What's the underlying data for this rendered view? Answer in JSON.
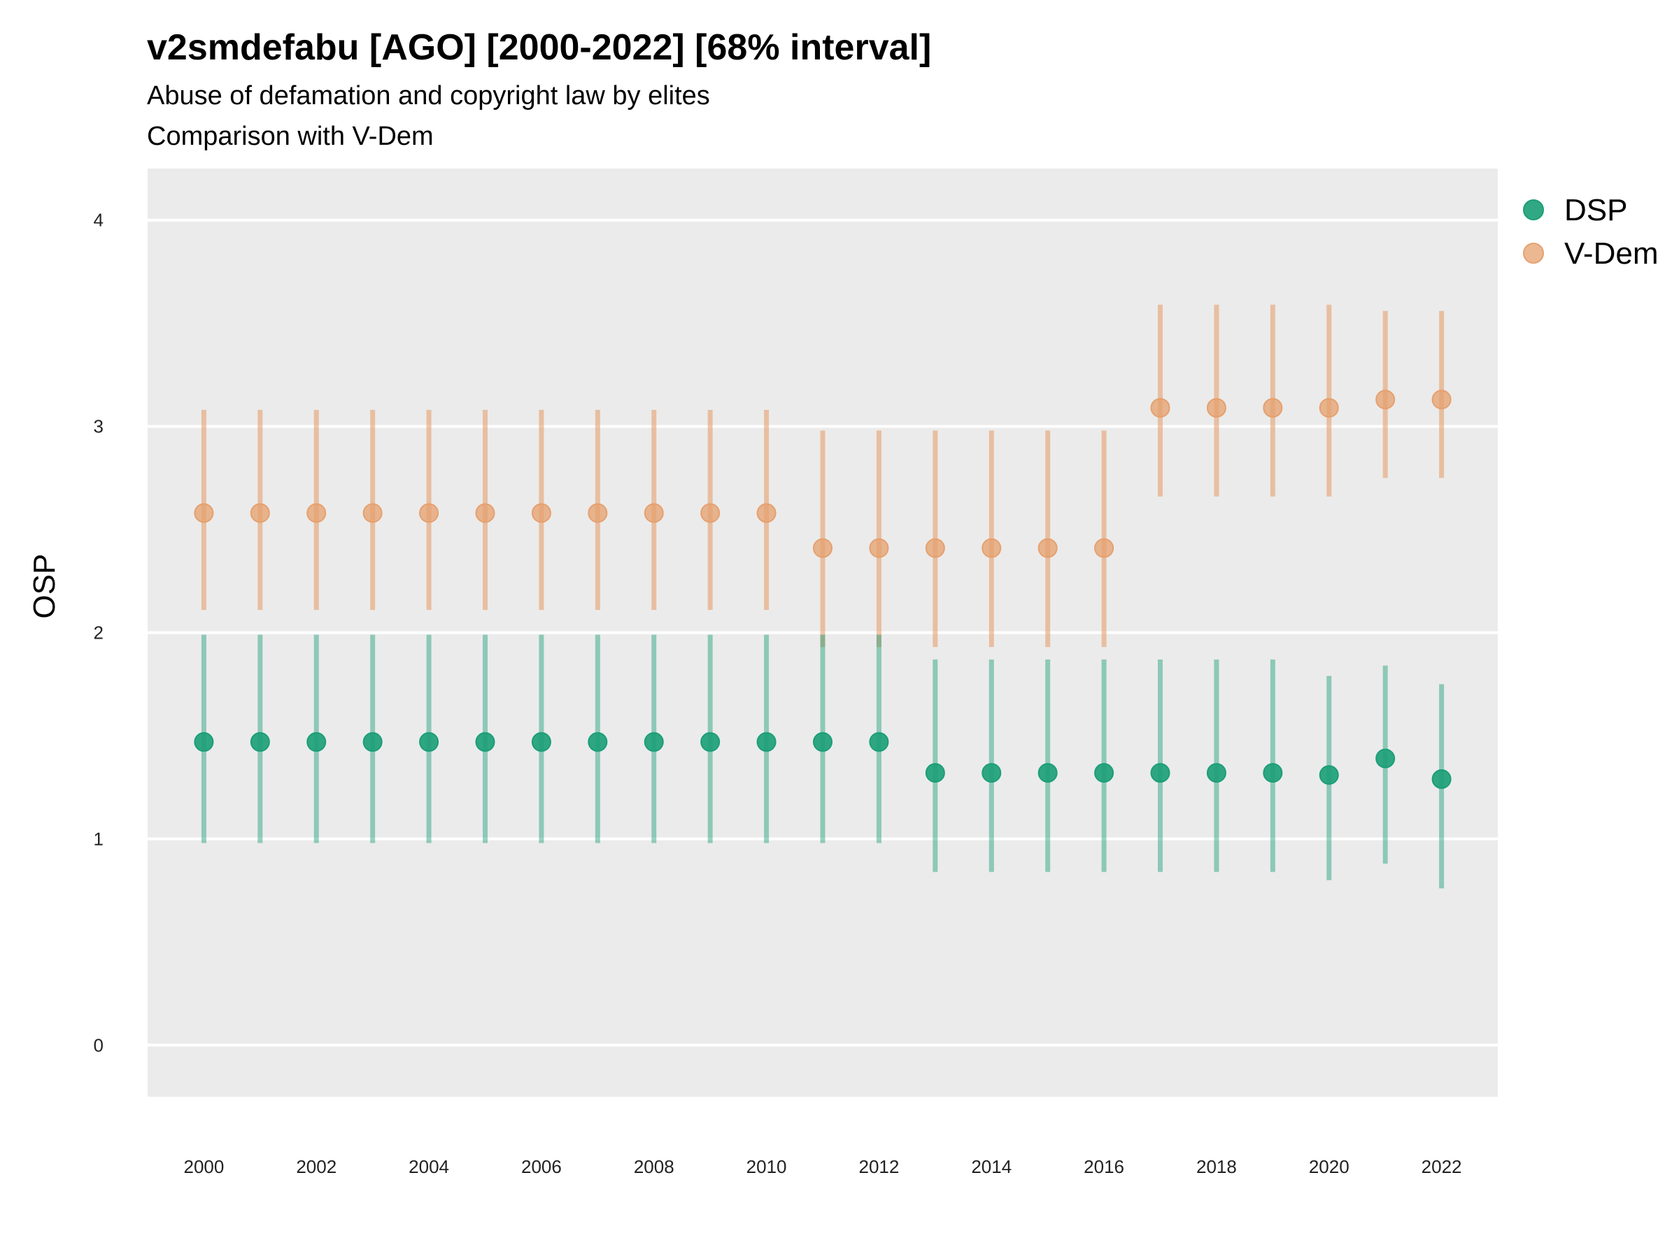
{
  "title": "v2smdefabu [AGO] [2000-2022] [68% interval]",
  "subtitle_1": "Abuse of defamation and copyright law by elites",
  "subtitle_2": "Comparison with V-Dem",
  "colors": {
    "DSP": "#1b9e77",
    "V-Dem": "#e6a06e",
    "panel": "#ebebeb",
    "grid": "#ffffff"
  },
  "chart_data": {
    "type": "scatter",
    "ylabel": "OSP",
    "xlabel": "",
    "ylim": [
      -0.25,
      4.25
    ],
    "xlim": [
      1999,
      2023
    ],
    "y_ticks": [
      0,
      1,
      2,
      3,
      4
    ],
    "x_ticks": [
      2000,
      2002,
      2004,
      2006,
      2008,
      2010,
      2012,
      2014,
      2016,
      2018,
      2020,
      2022
    ],
    "grid": true,
    "legend_position": "right",
    "x": [
      2000,
      2001,
      2002,
      2003,
      2004,
      2005,
      2006,
      2007,
      2008,
      2009,
      2010,
      2011,
      2012,
      2013,
      2014,
      2015,
      2016,
      2017,
      2018,
      2019,
      2020,
      2021,
      2022
    ],
    "series": [
      {
        "name": "DSP",
        "values": [
          1.47,
          1.47,
          1.47,
          1.47,
          1.47,
          1.47,
          1.47,
          1.47,
          1.47,
          1.47,
          1.47,
          1.47,
          1.47,
          1.32,
          1.32,
          1.32,
          1.32,
          1.32,
          1.32,
          1.32,
          1.31,
          1.39,
          1.29
        ],
        "lower": [
          0.98,
          0.98,
          0.98,
          0.98,
          0.98,
          0.98,
          0.98,
          0.98,
          0.98,
          0.98,
          0.98,
          0.98,
          0.98,
          0.84,
          0.84,
          0.84,
          0.84,
          0.84,
          0.84,
          0.84,
          0.8,
          0.88,
          0.76
        ],
        "upper": [
          1.99,
          1.99,
          1.99,
          1.99,
          1.99,
          1.99,
          1.99,
          1.99,
          1.99,
          1.99,
          1.99,
          1.99,
          1.99,
          1.87,
          1.87,
          1.87,
          1.87,
          1.87,
          1.87,
          1.87,
          1.79,
          1.84,
          1.75
        ]
      },
      {
        "name": "V-Dem",
        "values": [
          2.58,
          2.58,
          2.58,
          2.58,
          2.58,
          2.58,
          2.58,
          2.58,
          2.58,
          2.58,
          2.58,
          2.41,
          2.41,
          2.41,
          2.41,
          2.41,
          2.41,
          3.09,
          3.09,
          3.09,
          3.09,
          3.13,
          3.13
        ],
        "lower": [
          2.11,
          2.11,
          2.11,
          2.11,
          2.11,
          2.11,
          2.11,
          2.11,
          2.11,
          2.11,
          2.11,
          1.93,
          1.93,
          1.93,
          1.93,
          1.93,
          1.93,
          2.66,
          2.66,
          2.66,
          2.66,
          2.75,
          2.75
        ],
        "upper": [
          3.08,
          3.08,
          3.08,
          3.08,
          3.08,
          3.08,
          3.08,
          3.08,
          3.08,
          3.08,
          3.08,
          2.98,
          2.98,
          2.98,
          2.98,
          2.98,
          2.98,
          3.59,
          3.59,
          3.59,
          3.59,
          3.56,
          3.56
        ]
      }
    ]
  }
}
